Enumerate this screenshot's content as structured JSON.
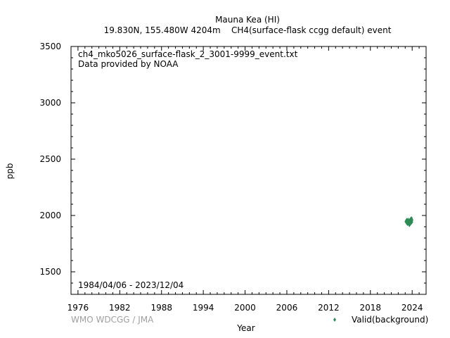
{
  "chart_data": {
    "type": "scatter",
    "title": "Mauna Kea (HI)",
    "subtitle": "19.830N, 155.480W 4204m    CH4(surface-flask ccgg default) event",
    "xlabel": "Year",
    "ylabel": "ppb",
    "xlim": [
      1975,
      2026
    ],
    "ylim": [
      1300,
      3500
    ],
    "x_ticks": [
      1976,
      1982,
      1988,
      1994,
      2000,
      2006,
      2012,
      2018,
      2024
    ],
    "y_ticks": [
      1500,
      2000,
      2500,
      3000,
      3500
    ],
    "grid": false,
    "legend_position": "bottom-right",
    "annotations": {
      "file": "ch4_mko5026_surface-flask_2_3001-9999_event.txt",
      "provider": "Data provided by NOAA",
      "period": "1984/04/06 - 2023/12/04",
      "credit": "WMO WDCGG / JMA"
    },
    "series": [
      {
        "name": "Valid(background)",
        "color": "#2e8b57",
        "marker": "diamond",
        "points": [
          [
            2023.1,
            1945
          ],
          [
            2023.15,
            1952
          ],
          [
            2023.18,
            1938
          ],
          [
            2023.22,
            1960
          ],
          [
            2023.26,
            1942
          ],
          [
            2023.3,
            1955
          ],
          [
            2023.35,
            1930
          ],
          [
            2023.38,
            1948
          ],
          [
            2023.42,
            1962
          ],
          [
            2023.46,
            1935
          ],
          [
            2023.5,
            1950
          ],
          [
            2023.54,
            1928
          ],
          [
            2023.57,
            1944
          ],
          [
            2023.6,
            1915
          ],
          [
            2023.64,
            1958
          ],
          [
            2023.68,
            1940
          ],
          [
            2023.71,
            1925
          ],
          [
            2023.75,
            1952
          ],
          [
            2023.78,
            1968
          ],
          [
            2023.82,
            1946
          ],
          [
            2023.86,
            1935
          ],
          [
            2023.89,
            1975
          ],
          [
            2023.92,
            1955
          ],
          [
            2023.95,
            1942
          ],
          [
            2023.98,
            1960
          ],
          [
            2023.2,
            1948
          ],
          [
            2023.33,
            1925
          ],
          [
            2023.48,
            1940
          ],
          [
            2023.62,
            1932
          ],
          [
            2023.8,
            1958
          ]
        ]
      }
    ]
  }
}
